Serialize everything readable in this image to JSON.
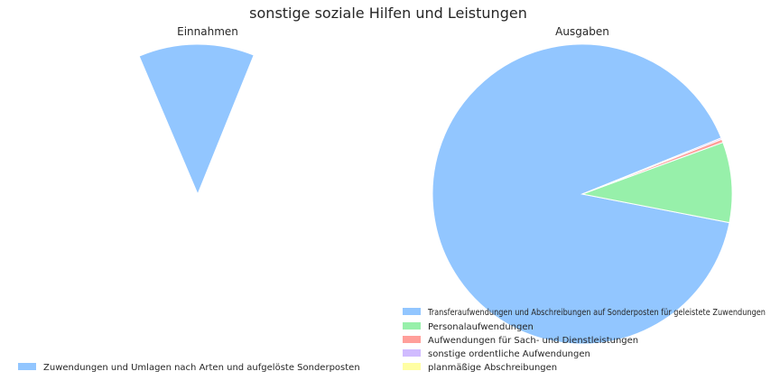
{
  "figure": {
    "title": "sonstige soziale Hilfen und Leistungen"
  },
  "colors": {
    "palette": [
      "#92c6ff",
      "#97f0aa",
      "#ff9f9a",
      "#d0bbff",
      "#fffea3"
    ],
    "wedge_edge": "#ffffff"
  },
  "chart_data": [
    {
      "type": "pie",
      "title": "Einnahmen",
      "start_angle_deg": 68,
      "labels": [
        "Zuwendungen und Umlagen nach Arten und aufgelöste Sonderposten"
      ],
      "values": [
        100
      ],
      "shown_fraction": 0.125,
      "legend_position": "lower-left"
    },
    {
      "type": "pie",
      "title": "Ausgaben",
      "start_angle_deg": 22,
      "labels": [
        "Transferaufwendungen und Abschreibungen auf Sonderposten für geleistete Zuwendungen",
        "Personalaufwendungen",
        "Aufwendungen für Sach- und Dienstleistungen",
        "sonstige ordentliche Aufwendungen",
        "planmäßige Abschreibungen"
      ],
      "values": [
        90.84,
        8.66,
        0.35,
        0.15,
        0.0
      ],
      "legend_position": "lower-center"
    }
  ]
}
